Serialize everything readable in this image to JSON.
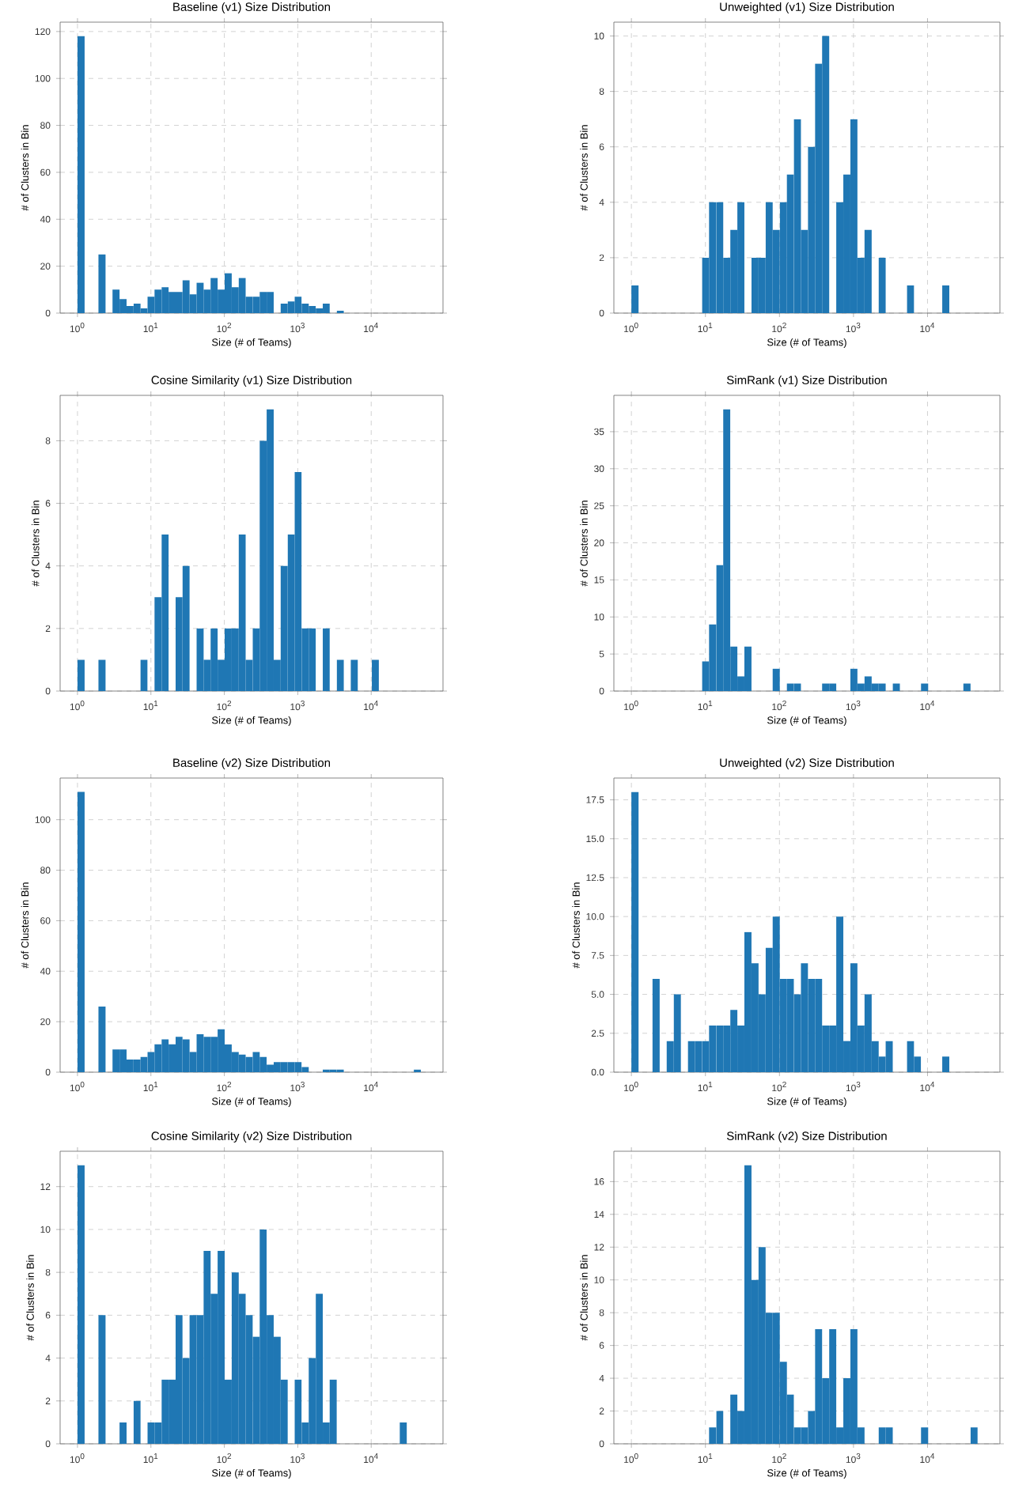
{
  "chart_data": [
    {
      "type": "histogram",
      "title": "Baseline (v1) Size Distribution",
      "xlabel": "Size (# of Teams)",
      "ylabel": "# of Clusters in Bin",
      "color": "#1f77b4",
      "log": "x",
      "grid": true,
      "xlim": [
        0.58,
        95000
      ],
      "ylim": [
        0,
        124
      ],
      "xticks": [
        {
          "value": 1,
          "label": "10$^{0}$"
        },
        {
          "value": 10,
          "label": "10$^{1}$"
        },
        {
          "value": 100,
          "label": "10$^{2}$"
        },
        {
          "value": 1000,
          "label": "10$^{3}$"
        },
        {
          "value": 10000,
          "label": "10$^{4}$"
        }
      ],
      "yticks": [
        0,
        20,
        40,
        60,
        80,
        100,
        120
      ],
      "bins": [
        1,
        1.25,
        1.55,
        1.93,
        2.41,
        3,
        3.74,
        4.66,
        5.8,
        7.22,
        9,
        11.2,
        14,
        17.4,
        21.7,
        27,
        33.6,
        41.9,
        52.2,
        65,
        81,
        101,
        126,
        157,
        195,
        243,
        303,
        377,
        470,
        585,
        729,
        908,
        1130,
        1410,
        1760,
        2190,
        2720,
        3390,
        4230,
        5270,
        6560,
        8170,
        10200,
        12700,
        15800,
        19700,
        24500,
        30500,
        38100,
        47400,
        59000
      ],
      "values": [
        118,
        0,
        0,
        25,
        0,
        10,
        6,
        3,
        4,
        2,
        7,
        10,
        11,
        9,
        9,
        14,
        8,
        13,
        10,
        15,
        10,
        17,
        11,
        15,
        7,
        7,
        9,
        9,
        0,
        4,
        5,
        7,
        4,
        3,
        2,
        4,
        0,
        1,
        0,
        0,
        0,
        0,
        0,
        0,
        0,
        0,
        0,
        0,
        0,
        0
      ]
    },
    {
      "type": "histogram",
      "title": "Unweighted (v1) Size Distribution",
      "xlabel": "Size (# of Teams)",
      "ylabel": "# of Clusters in Bin",
      "color": "#1f77b4",
      "log": "x",
      "grid": true,
      "xlim": [
        0.58,
        95000
      ],
      "ylim": [
        0,
        10.5
      ],
      "xticks": [
        {
          "value": 1,
          "label": "10$^{0}$"
        },
        {
          "value": 10,
          "label": "10$^{1}$"
        },
        {
          "value": 100,
          "label": "10$^{2}$"
        },
        {
          "value": 1000,
          "label": "10$^{3}$"
        },
        {
          "value": 10000,
          "label": "10$^{4}$"
        }
      ],
      "yticks": [
        0,
        2,
        4,
        6,
        8,
        10
      ],
      "bins": [
        1,
        1.25,
        1.55,
        1.93,
        2.41,
        3,
        3.74,
        4.66,
        5.8,
        7.22,
        9,
        11.2,
        14,
        17.4,
        21.7,
        27,
        33.6,
        41.9,
        52.2,
        65,
        81,
        101,
        126,
        157,
        195,
        243,
        303,
        377,
        470,
        585,
        729,
        908,
        1130,
        1410,
        1760,
        2190,
        2720,
        3390,
        4230,
        5270,
        6560,
        8170,
        10200,
        12700,
        15800,
        19700,
        24500,
        30500,
        38100,
        47400,
        59000
      ],
      "values": [
        1,
        0,
        0,
        0,
        0,
        0,
        0,
        0,
        0,
        0,
        2,
        4,
        4,
        2,
        3,
        4,
        0,
        2,
        2,
        4,
        3,
        4,
        5,
        7,
        3,
        6,
        9,
        10,
        0,
        4,
        5,
        7,
        2,
        3,
        0,
        2,
        0,
        0,
        0,
        1,
        0,
        0,
        0,
        0,
        1,
        0,
        0,
        0,
        0,
        0
      ]
    },
    {
      "type": "histogram",
      "title": "Cosine Similarity (v1) Size Distribution",
      "xlabel": "Size (# of Teams)",
      "ylabel": "# of Clusters in Bin",
      "color": "#1f77b4",
      "log": "x",
      "grid": true,
      "xlim": [
        0.58,
        95000
      ],
      "ylim": [
        0,
        9.45
      ],
      "xticks": [
        {
          "value": 1,
          "label": "10$^{0}$"
        },
        {
          "value": 10,
          "label": "10$^{1}$"
        },
        {
          "value": 100,
          "label": "10$^{2}$"
        },
        {
          "value": 1000,
          "label": "10$^{3}$"
        },
        {
          "value": 10000,
          "label": "10$^{4}$"
        }
      ],
      "yticks": [
        0,
        2,
        4,
        6,
        8
      ],
      "bins": [
        1,
        1.25,
        1.55,
        1.93,
        2.41,
        3,
        3.74,
        4.66,
        5.8,
        7.22,
        9,
        11.2,
        14,
        17.4,
        21.7,
        27,
        33.6,
        41.9,
        52.2,
        65,
        81,
        101,
        126,
        157,
        195,
        243,
        303,
        377,
        470,
        585,
        729,
        908,
        1130,
        1410,
        1760,
        2190,
        2720,
        3390,
        4230,
        5270,
        6560,
        8170,
        10200,
        12700,
        15800,
        19700,
        24500,
        30500,
        38100,
        47400,
        59000
      ],
      "values": [
        1,
        0,
        0,
        1,
        0,
        0,
        0,
        0,
        0,
        1,
        0,
        3,
        5,
        0,
        3,
        4,
        0,
        2,
        1,
        2,
        1,
        2,
        2,
        5,
        1,
        2,
        8,
        9,
        1,
        4,
        5,
        7,
        2,
        2,
        0,
        2,
        0,
        1,
        0,
        1,
        0,
        0,
        1,
        0,
        0,
        0,
        0,
        0,
        0,
        0
      ]
    },
    {
      "type": "histogram",
      "title": "SimRank (v1) Size Distribution",
      "xlabel": "Size (# of Teams)",
      "ylabel": "# of Clusters in Bin",
      "color": "#1f77b4",
      "log": "x",
      "grid": true,
      "xlim": [
        0.58,
        95000
      ],
      "ylim": [
        0,
        39.9
      ],
      "xticks": [
        {
          "value": 1,
          "label": "10$^{0}$"
        },
        {
          "value": 10,
          "label": "10$^{1}$"
        },
        {
          "value": 100,
          "label": "10$^{2}$"
        },
        {
          "value": 1000,
          "label": "10$^{3}$"
        },
        {
          "value": 10000,
          "label": "10$^{4}$"
        }
      ],
      "yticks": [
        0,
        5,
        10,
        15,
        20,
        25,
        30,
        35
      ],
      "bins": [
        1,
        1.25,
        1.55,
        1.93,
        2.41,
        3,
        3.74,
        4.66,
        5.8,
        7.22,
        9,
        11.2,
        14,
        17.4,
        21.7,
        27,
        33.6,
        41.9,
        52.2,
        65,
        81,
        101,
        126,
        157,
        195,
        243,
        303,
        377,
        470,
        585,
        729,
        908,
        1130,
        1410,
        1760,
        2190,
        2720,
        3390,
        4230,
        5270,
        6560,
        8170,
        10200,
        12700,
        15800,
        19700,
        24500,
        30500,
        38100,
        47400,
        59000
      ],
      "values": [
        0,
        0,
        0,
        0,
        0,
        0,
        0,
        0,
        0,
        0,
        4,
        9,
        17,
        38,
        6,
        2,
        6,
        0,
        0,
        0,
        3,
        0,
        1,
        1,
        0,
        0,
        0,
        1,
        1,
        0,
        0,
        3,
        1,
        2,
        1,
        1,
        0,
        1,
        0,
        0,
        0,
        1,
        0,
        0,
        0,
        0,
        0,
        1,
        0,
        0
      ]
    },
    {
      "type": "histogram",
      "title": "Baseline (v2) Size Distribution",
      "xlabel": "Size (# of Teams)",
      "ylabel": "# of Clusters in Bin",
      "color": "#1f77b4",
      "log": "x",
      "grid": true,
      "xlim": [
        0.58,
        95000
      ],
      "ylim": [
        0,
        116.5
      ],
      "xticks": [
        {
          "value": 1,
          "label": "10$^{0}$"
        },
        {
          "value": 10,
          "label": "10$^{1}$"
        },
        {
          "value": 100,
          "label": "10$^{2}$"
        },
        {
          "value": 1000,
          "label": "10$^{3}$"
        },
        {
          "value": 10000,
          "label": "10$^{4}$"
        }
      ],
      "yticks": [
        0,
        20,
        40,
        60,
        80,
        100
      ],
      "bins": [
        1,
        1.25,
        1.55,
        1.93,
        2.41,
        3,
        3.74,
        4.66,
        5.8,
        7.22,
        9,
        11.2,
        14,
        17.4,
        21.7,
        27,
        33.6,
        41.9,
        52.2,
        65,
        81,
        101,
        126,
        157,
        195,
        243,
        303,
        377,
        470,
        585,
        729,
        908,
        1130,
        1410,
        1760,
        2190,
        2720,
        3390,
        4230,
        5270,
        6560,
        8170,
        10200,
        12700,
        15800,
        19700,
        24500,
        30500,
        38100,
        47400,
        59000
      ],
      "values": [
        111,
        0,
        0,
        26,
        0,
        9,
        9,
        5,
        5,
        6,
        8,
        11,
        13,
        11,
        14,
        13,
        8,
        15,
        14,
        14,
        17,
        11,
        8,
        7,
        6,
        8,
        6,
        3,
        4,
        4,
        4,
        4,
        2,
        0,
        0,
        1,
        1,
        1,
        0,
        0,
        0,
        0,
        0,
        0,
        0,
        0,
        0,
        0,
        1,
        0
      ]
    },
    {
      "type": "histogram",
      "title": "Unweighted (v2) Size Distribution",
      "xlabel": "Size (# of Teams)",
      "ylabel": "# of Clusters in Bin",
      "color": "#1f77b4",
      "log": "x",
      "grid": true,
      "xlim": [
        0.58,
        95000
      ],
      "ylim": [
        0,
        18.9
      ],
      "xticks": [
        {
          "value": 1,
          "label": "10$^{0}$"
        },
        {
          "value": 10,
          "label": "10$^{1}$"
        },
        {
          "value": 100,
          "label": "10$^{2}$"
        },
        {
          "value": 1000,
          "label": "10$^{3}$"
        },
        {
          "value": 10000,
          "label": "10$^{4}$"
        }
      ],
      "yticks": [
        {
          "value": 0,
          "label": "0.0"
        },
        2.5,
        {
          "value": 5,
          "label": "5.0"
        },
        7.5,
        {
          "value": 10,
          "label": "10.0"
        },
        12.5,
        {
          "value": 15,
          "label": "15.0"
        },
        17.5
      ],
      "bins": [
        1,
        1.25,
        1.55,
        1.93,
        2.41,
        3,
        3.74,
        4.66,
        5.8,
        7.22,
        9,
        11.2,
        14,
        17.4,
        21.7,
        27,
        33.6,
        41.9,
        52.2,
        65,
        81,
        101,
        126,
        157,
        195,
        243,
        303,
        377,
        470,
        585,
        729,
        908,
        1130,
        1410,
        1760,
        2190,
        2720,
        3390,
        4230,
        5270,
        6560,
        8170,
        10200,
        12700,
        15800,
        19700,
        24500,
        30500,
        38100,
        47400,
        59000
      ],
      "values": [
        18,
        0,
        0,
        6,
        0,
        2,
        5,
        0,
        2,
        2,
        2,
        3,
        3,
        3,
        4,
        3,
        9,
        7,
        5,
        8,
        10,
        6,
        6,
        5,
        7,
        6,
        6,
        3,
        3,
        10,
        2,
        7,
        3,
        5,
        2,
        1,
        2,
        0,
        0,
        2,
        1,
        0,
        0,
        0,
        1,
        0,
        0,
        0,
        0,
        0
      ]
    },
    {
      "type": "histogram",
      "title": "Cosine Similarity (v2) Size Distribution",
      "xlabel": "Size (# of Teams)",
      "ylabel": "# of Clusters in Bin",
      "color": "#1f77b4",
      "log": "x",
      "grid": true,
      "xlim": [
        0.58,
        95000
      ],
      "ylim": [
        0,
        13.65
      ],
      "xticks": [
        {
          "value": 1,
          "label": "10$^{0}$"
        },
        {
          "value": 10,
          "label": "10$^{1}$"
        },
        {
          "value": 100,
          "label": "10$^{2}$"
        },
        {
          "value": 1000,
          "label": "10$^{3}$"
        },
        {
          "value": 10000,
          "label": "10$^{4}$"
        }
      ],
      "yticks": [
        0,
        2,
        4,
        6,
        8,
        10,
        12
      ],
      "bins": [
        1,
        1.25,
        1.55,
        1.93,
        2.41,
        3,
        3.74,
        4.66,
        5.8,
        7.22,
        9,
        11.2,
        14,
        17.4,
        21.7,
        27,
        33.6,
        41.9,
        52.2,
        65,
        81,
        101,
        126,
        157,
        195,
        243,
        303,
        377,
        470,
        585,
        729,
        908,
        1130,
        1410,
        1760,
        2190,
        2720,
        3390,
        4230,
        5270,
        6560,
        8170,
        10200,
        12700,
        15800,
        19700,
        24500,
        30500,
        38100,
        47400,
        59000
      ],
      "values": [
        13,
        0,
        0,
        6,
        0,
        0,
        1,
        0,
        2,
        0,
        1,
        1,
        3,
        3,
        6,
        4,
        6,
        6,
        9,
        7,
        9,
        3,
        8,
        7,
        6,
        5,
        10,
        6,
        5,
        3,
        0,
        3,
        1,
        4,
        7,
        1,
        3,
        0,
        0,
        0,
        0,
        0,
        0,
        0,
        0,
        0,
        1,
        0,
        0,
        0
      ]
    },
    {
      "type": "histogram",
      "title": "SimRank (v2) Size Distribution",
      "xlabel": "Size (# of Teams)",
      "ylabel": "# of Clusters in Bin",
      "color": "#1f77b4",
      "log": "x",
      "grid": true,
      "xlim": [
        0.58,
        95000
      ],
      "ylim": [
        0,
        17.85
      ],
      "xticks": [
        {
          "value": 1,
          "label": "10$^{0}$"
        },
        {
          "value": 10,
          "label": "10$^{1}$"
        },
        {
          "value": 100,
          "label": "10$^{2}$"
        },
        {
          "value": 1000,
          "label": "10$^{3}$"
        },
        {
          "value": 10000,
          "label": "10$^{4}$"
        }
      ],
      "yticks": [
        0,
        2,
        4,
        6,
        8,
        10,
        12,
        14,
        16
      ],
      "bins": [
        1,
        1.25,
        1.55,
        1.93,
        2.41,
        3,
        3.74,
        4.66,
        5.8,
        7.22,
        9,
        11.2,
        14,
        17.4,
        21.7,
        27,
        33.6,
        41.9,
        52.2,
        65,
        81,
        101,
        126,
        157,
        195,
        243,
        303,
        377,
        470,
        585,
        729,
        908,
        1130,
        1410,
        1760,
        2190,
        2720,
        3390,
        4230,
        5270,
        6560,
        8170,
        10200,
        12700,
        15800,
        19700,
        24500,
        30500,
        38100,
        47400,
        59000
      ],
      "values": [
        0,
        0,
        0,
        0,
        0,
        0,
        0,
        0,
        0,
        0,
        0,
        1,
        2,
        0,
        3,
        2,
        17,
        10,
        12,
        8,
        8,
        5,
        3,
        1,
        1,
        2,
        7,
        4,
        7,
        1,
        4,
        7,
        1,
        0,
        0,
        1,
        1,
        0,
        0,
        0,
        0,
        1,
        0,
        0,
        0,
        0,
        0,
        0,
        1,
        0
      ]
    }
  ]
}
